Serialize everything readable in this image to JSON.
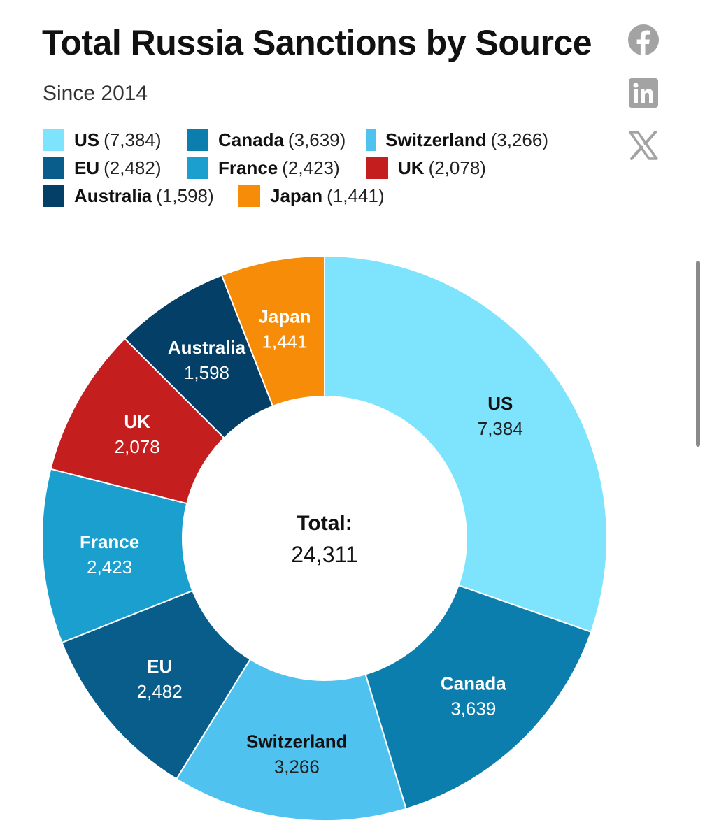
{
  "header": {
    "title": "Total Russia Sanctions by Source",
    "subtitle": "Since 2014"
  },
  "share": {
    "icons": [
      "facebook-icon",
      "linkedin-icon",
      "x-icon"
    ]
  },
  "legend_rows": [
    [
      0,
      1,
      2
    ],
    [
      3,
      4,
      5
    ],
    [
      6,
      7
    ]
  ],
  "chart_data": {
    "type": "pie",
    "title": "Total Russia Sanctions by Source",
    "subtitle": "Since 2014",
    "legend_position": "top",
    "center_label": "Total:",
    "center_value": "24,311",
    "total": 24311,
    "slices": [
      {
        "name": "US",
        "value": 7384,
        "display": "7,384",
        "legend_display": "(7,384)",
        "color": "#7ee3fd",
        "label_color": "#111111",
        "value_color": "#222222"
      },
      {
        "name": "Canada",
        "value": 3639,
        "display": "3,639",
        "legend_display": "(3,639)",
        "color": "#0b7ead",
        "label_color": "#ffffff",
        "value_color": "#ffffff"
      },
      {
        "name": "Switzerland",
        "value": 3266,
        "display": "3,266",
        "legend_display": "(3,266)",
        "color": "#4fc2ef",
        "label_color": "#111111",
        "value_color": "#222222"
      },
      {
        "name": "EU",
        "value": 2482,
        "display": "2,482",
        "legend_display": "(2,482)",
        "color": "#085d8a",
        "label_color": "#ffffff",
        "value_color": "#ffffff"
      },
      {
        "name": "France",
        "value": 2423,
        "display": "2,423",
        "legend_display": "(2,423)",
        "color": "#1b9fcf",
        "label_color": "#ffffff",
        "value_color": "#ffffff"
      },
      {
        "name": "UK",
        "value": 2078,
        "display": "2,078",
        "legend_display": "(2,078)",
        "color": "#c51e1f",
        "label_color": "#ffffff",
        "value_color": "#ffffff"
      },
      {
        "name": "Australia",
        "value": 1598,
        "display": "1,598",
        "legend_display": "(1,598)",
        "color": "#033f66",
        "label_color": "#ffffff",
        "value_color": "#ffffff"
      },
      {
        "name": "Japan",
        "value": 1441,
        "display": "1,441",
        "legend_display": "(1,441)",
        "color": "#f68c07",
        "label_color": "#ffffff",
        "value_color": "#ffffff"
      }
    ]
  }
}
